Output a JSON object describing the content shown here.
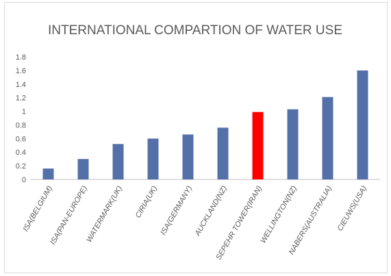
{
  "chart_data": {
    "type": "bar",
    "title": "INTERNATIONAL COMPARTION OF WATER USE",
    "xlabel": "",
    "ylabel": "",
    "ylim": [
      0,
      1.8
    ],
    "yticks": [
      "0",
      "0.2",
      "0.4",
      "0.6",
      "0.8",
      "1",
      "1.2",
      "1.4",
      "1.6",
      "1.8"
    ],
    "grid": false,
    "legend": "none",
    "categories": [
      "ISA(BELGIUM)",
      "ISA(PAN-EUROPE)",
      "WATERMARK(UK)",
      "CIRIA(UK)",
      "ISA(GERMANY)",
      "AUCKLAND(NZ)",
      "SEPEHR TOWER(IRAN)",
      "WELLINGTON(NZ)",
      "NABERS(AUSTRALIA)",
      "CIEUWS(USA)"
    ],
    "values": [
      0.16,
      0.3,
      0.52,
      0.6,
      0.66,
      0.76,
      0.99,
      1.03,
      1.21,
      1.6
    ],
    "colors": {
      "default_bar": "#5470a8",
      "highlight_bar": "#ff0000",
      "highlight_category": "SEPEHR TOWER(IRAN)",
      "axis": "#bfbfbf",
      "text": "#595959"
    }
  }
}
